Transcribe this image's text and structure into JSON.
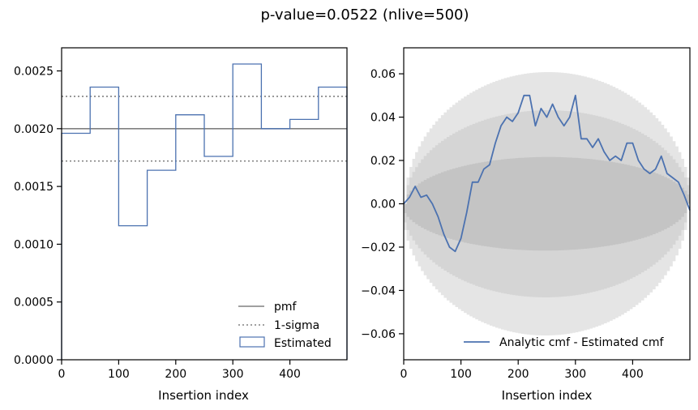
{
  "figure": {
    "suptitle": "p-value=0.0522 (nlive=500)"
  },
  "chart_data": [
    {
      "type": "step",
      "xlabel": "Insertion index",
      "ylabel": "",
      "xlim": [
        0,
        500
      ],
      "ylim": [
        0,
        0.0027
      ],
      "xticks": [
        "0",
        "100",
        "200",
        "300",
        "400"
      ],
      "xtick_values": [
        0,
        100,
        200,
        300,
        400
      ],
      "yticks": [
        "0.0000",
        "0.0005",
        "0.0010",
        "0.0015",
        "0.0020",
        "0.0025"
      ],
      "ytick_values": [
        0,
        0.0005,
        0.001,
        0.0015,
        0.002,
        0.0025
      ],
      "grid": false,
      "legend_placement": "lower right",
      "bin_edges": [
        0,
        50,
        100,
        150,
        200,
        250,
        300,
        350,
        400,
        450,
        500
      ],
      "series": [
        {
          "name": "pmf",
          "style": "solid",
          "color": "#808080",
          "value": 0.002
        },
        {
          "name": "1-sigma",
          "style": "dotted",
          "color": "#808080",
          "values": [
            0.00228,
            0.00172
          ]
        },
        {
          "name": "Estimated",
          "style": "step",
          "color": "#4c72b0",
          "values": [
            0.00196,
            0.00236,
            0.00116,
            0.00164,
            0.00212,
            0.00176,
            0.00256,
            0.002,
            0.00208,
            0.00236
          ]
        }
      ]
    },
    {
      "type": "line",
      "xlabel": "Insertion index",
      "ylabel": "",
      "xlim": [
        0,
        500
      ],
      "ylim": [
        -0.072,
        0.072
      ],
      "xticks": [
        "0",
        "100",
        "200",
        "300",
        "400"
      ],
      "xtick_values": [
        0,
        100,
        200,
        300,
        400
      ],
      "yticks": [
        "−0.06",
        "−0.04",
        "−0.02",
        "0.00",
        "0.02",
        "0.04",
        "0.06"
      ],
      "ytick_values": [
        -0.06,
        -0.04,
        -0.02,
        0,
        0.02,
        0.04,
        0.06
      ],
      "grid": false,
      "legend_placement": "lower right",
      "bands": [
        {
          "sigma": 3,
          "color": "#e5e5e5",
          "max_halfwidth": 0.0608
        },
        {
          "sigma": 2,
          "color": "#d5d5d5",
          "max_halfwidth": 0.0432
        },
        {
          "sigma": 1,
          "color": "#c4c4c4",
          "max_halfwidth": 0.0216
        }
      ],
      "series": [
        {
          "name": "Analytic cmf - Estimated cmf",
          "color": "#4c72b0",
          "x": [
            0,
            10,
            20,
            30,
            40,
            50,
            60,
            70,
            80,
            90,
            100,
            110,
            120,
            130,
            140,
            150,
            160,
            170,
            180,
            190,
            200,
            210,
            220,
            230,
            240,
            250,
            260,
            270,
            280,
            290,
            300,
            310,
            320,
            330,
            340,
            350,
            360,
            370,
            380,
            390,
            400,
            410,
            420,
            430,
            440,
            450,
            460,
            470,
            480,
            490,
            500
          ],
          "y": [
            0.0,
            0.003,
            0.008,
            0.003,
            0.004,
            0.0,
            -0.006,
            -0.014,
            -0.02,
            -0.022,
            -0.016,
            -0.004,
            0.01,
            0.01,
            0.016,
            0.018,
            0.028,
            0.036,
            0.04,
            0.038,
            0.042,
            0.05,
            0.05,
            0.036,
            0.044,
            0.04,
            0.046,
            0.04,
            0.036,
            0.04,
            0.05,
            0.03,
            0.03,
            0.026,
            0.03,
            0.024,
            0.02,
            0.022,
            0.02,
            0.028,
            0.028,
            0.02,
            0.016,
            0.014,
            0.016,
            0.022,
            0.014,
            0.012,
            0.01,
            0.004,
            -0.003
          ]
        }
      ]
    }
  ]
}
